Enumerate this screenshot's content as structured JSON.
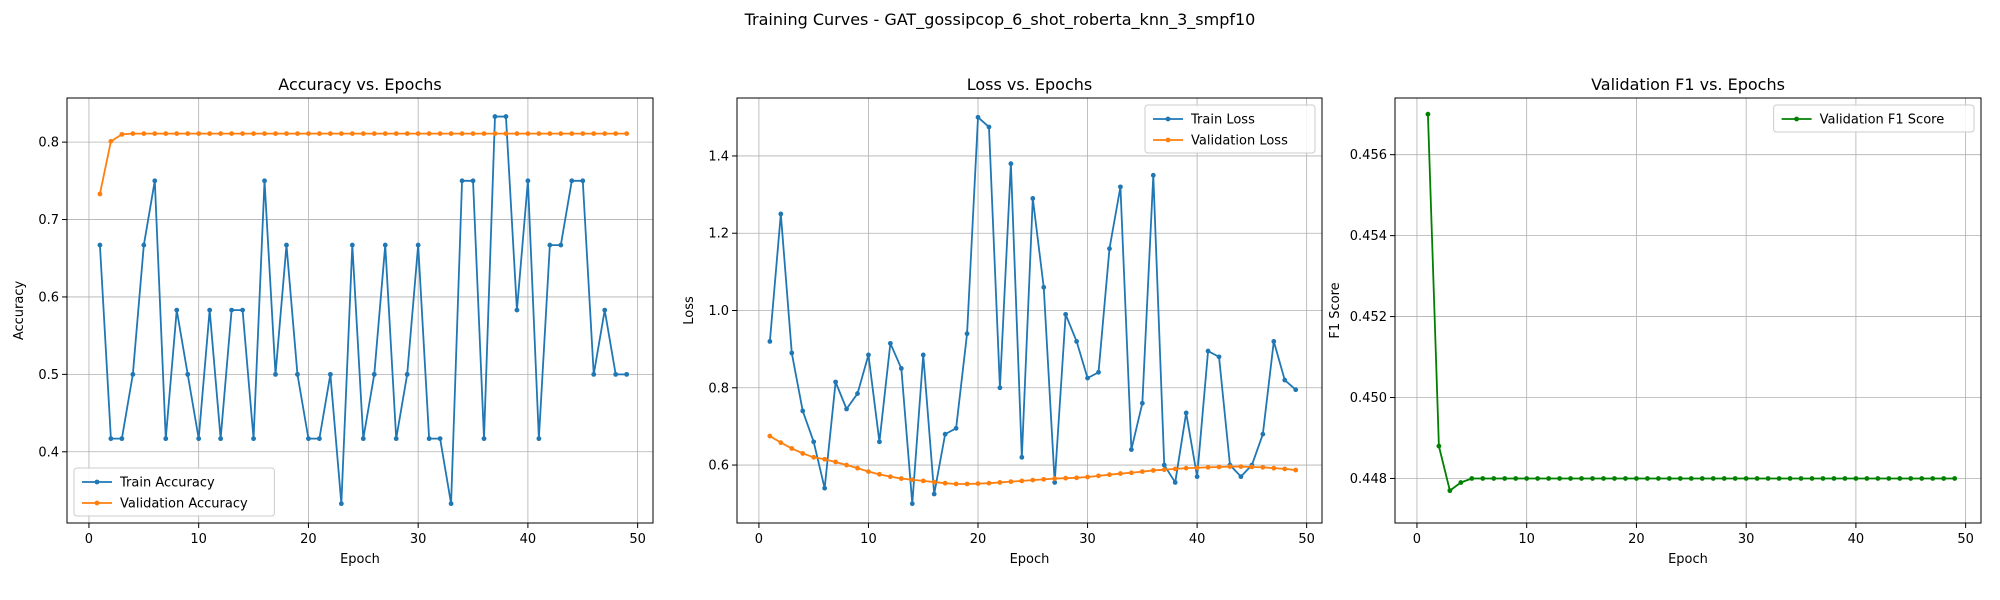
{
  "figure": {
    "suptitle": "Training Curves - GAT_gossipcop_6_shot_roberta_knn_3_smpf10"
  },
  "chart_data": [
    {
      "type": "line",
      "title": "Accuracy vs. Epochs",
      "xlabel": "Epoch",
      "ylabel": "Accuracy",
      "xlim": [
        -2,
        51.4
      ],
      "ylim": [
        0.308,
        0.857
      ],
      "xticks": [
        0,
        10,
        20,
        30,
        40,
        50
      ],
      "yticks": [
        0.4,
        0.5,
        0.6,
        0.7,
        0.8
      ],
      "ytick_labels": [
        "0.4",
        "0.5",
        "0.6",
        "0.7",
        "0.8"
      ],
      "grid": true,
      "legend_loc": "lower-left",
      "series": [
        {
          "name": "Train Accuracy",
          "color": "#1f77b4",
          "x": [
            1,
            2,
            3,
            4,
            5,
            6,
            7,
            8,
            9,
            10,
            11,
            12,
            13,
            14,
            15,
            16,
            17,
            18,
            19,
            20,
            21,
            22,
            23,
            24,
            25,
            26,
            27,
            28,
            29,
            30,
            31,
            32,
            33,
            34,
            35,
            36,
            37,
            38,
            39,
            40,
            41,
            42,
            43,
            44,
            45,
            46,
            47,
            48,
            49
          ],
          "y": [
            0.667,
            0.417,
            0.417,
            0.5,
            0.667,
            0.75,
            0.417,
            0.583,
            0.5,
            0.417,
            0.583,
            0.417,
            0.583,
            0.583,
            0.417,
            0.75,
            0.5,
            0.667,
            0.5,
            0.417,
            0.417,
            0.5,
            0.333,
            0.667,
            0.417,
            0.5,
            0.667,
            0.417,
            0.5,
            0.667,
            0.417,
            0.417,
            0.333,
            0.75,
            0.75,
            0.417,
            0.833,
            0.833,
            0.583,
            0.75,
            0.417,
            0.667,
            0.667,
            0.75,
            0.75,
            0.5,
            0.583,
            0.5,
            0.5
          ]
        },
        {
          "name": "Validation Accuracy",
          "color": "#ff7f0e",
          "x": [
            1,
            2,
            3,
            4,
            5,
            6,
            7,
            8,
            9,
            10,
            11,
            12,
            13,
            14,
            15,
            16,
            17,
            18,
            19,
            20,
            21,
            22,
            23,
            24,
            25,
            26,
            27,
            28,
            29,
            30,
            31,
            32,
            33,
            34,
            35,
            36,
            37,
            38,
            39,
            40,
            41,
            42,
            43,
            44,
            45,
            46,
            47,
            48,
            49
          ],
          "y": [
            0.733,
            0.801,
            0.81,
            0.811,
            0.811,
            0.811,
            0.811,
            0.811,
            0.811,
            0.811,
            0.811,
            0.811,
            0.811,
            0.811,
            0.811,
            0.811,
            0.811,
            0.811,
            0.811,
            0.811,
            0.811,
            0.811,
            0.811,
            0.811,
            0.811,
            0.811,
            0.811,
            0.811,
            0.811,
            0.811,
            0.811,
            0.811,
            0.811,
            0.811,
            0.811,
            0.811,
            0.811,
            0.811,
            0.811,
            0.811,
            0.811,
            0.811,
            0.811,
            0.811,
            0.811,
            0.811,
            0.811,
            0.811,
            0.811
          ]
        }
      ]
    },
    {
      "type": "line",
      "title": "Loss vs. Epochs",
      "xlabel": "Epoch",
      "ylabel": "Loss",
      "xlim": [
        -2,
        51.4
      ],
      "ylim": [
        0.45,
        1.55
      ],
      "xticks": [
        0,
        10,
        20,
        30,
        40,
        50
      ],
      "yticks": [
        0.6,
        0.8,
        1.0,
        1.2,
        1.4
      ],
      "ytick_labels": [
        "0.6",
        "0.8",
        "1.0",
        "1.2",
        "1.4"
      ],
      "grid": true,
      "legend_loc": "upper-right",
      "series": [
        {
          "name": "Train Loss",
          "color": "#1f77b4",
          "x": [
            1,
            2,
            3,
            4,
            5,
            6,
            7,
            8,
            9,
            10,
            11,
            12,
            13,
            14,
            15,
            16,
            17,
            18,
            19,
            20,
            21,
            22,
            23,
            24,
            25,
            26,
            27,
            28,
            29,
            30,
            31,
            32,
            33,
            34,
            35,
            36,
            37,
            38,
            39,
            40,
            41,
            42,
            43,
            44,
            45,
            46,
            47,
            48,
            49
          ],
          "y": [
            0.92,
            1.25,
            0.89,
            0.74,
            0.66,
            0.54,
            0.815,
            0.745,
            0.785,
            0.885,
            0.66,
            0.915,
            0.85,
            0.5,
            0.885,
            0.525,
            0.68,
            0.695,
            0.94,
            1.5,
            1.475,
            0.8,
            1.38,
            0.62,
            1.29,
            1.06,
            0.555,
            0.99,
            0.92,
            0.825,
            0.84,
            1.16,
            1.32,
            0.64,
            0.76,
            1.35,
            0.6,
            0.555,
            0.735,
            0.57,
            0.895,
            0.88,
            0.6,
            0.57,
            0.6,
            0.68,
            0.92,
            0.82,
            0.795
          ]
        },
        {
          "name": "Validation Loss",
          "color": "#ff7f0e",
          "x": [
            1,
            2,
            3,
            4,
            5,
            6,
            7,
            8,
            9,
            10,
            11,
            12,
            13,
            14,
            15,
            16,
            17,
            18,
            19,
            20,
            21,
            22,
            23,
            24,
            25,
            26,
            27,
            28,
            29,
            30,
            31,
            32,
            33,
            34,
            35,
            36,
            37,
            38,
            39,
            40,
            41,
            42,
            43,
            44,
            45,
            46,
            47,
            48,
            49
          ],
          "y": [
            0.675,
            0.658,
            0.643,
            0.63,
            0.62,
            0.615,
            0.608,
            0.6,
            0.592,
            0.583,
            0.576,
            0.57,
            0.565,
            0.562,
            0.559,
            0.556,
            0.553,
            0.551,
            0.551,
            0.552,
            0.553,
            0.555,
            0.557,
            0.559,
            0.561,
            0.563,
            0.565,
            0.566,
            0.567,
            0.569,
            0.572,
            0.575,
            0.578,
            0.58,
            0.583,
            0.586,
            0.588,
            0.59,
            0.592,
            0.593,
            0.594,
            0.595,
            0.596,
            0.596,
            0.595,
            0.594,
            0.592,
            0.59,
            0.587
          ]
        }
      ]
    },
    {
      "type": "line",
      "title": "Validation F1 vs. Epochs",
      "xlabel": "Epoch",
      "ylabel": "F1 Score",
      "xlim": [
        -2,
        51.4
      ],
      "ylim": [
        0.4469,
        0.4574
      ],
      "xticks": [
        0,
        10,
        20,
        30,
        40,
        50
      ],
      "yticks": [
        0.448,
        0.45,
        0.452,
        0.454,
        0.456
      ],
      "ytick_labels": [
        "0.448",
        "0.450",
        "0.452",
        "0.454",
        "0.456"
      ],
      "grid": true,
      "legend_loc": "upper-right",
      "series": [
        {
          "name": "Validation F1 Score",
          "color": "#008000",
          "x": [
            1,
            2,
            3,
            4,
            5,
            6,
            7,
            8,
            9,
            10,
            11,
            12,
            13,
            14,
            15,
            16,
            17,
            18,
            19,
            20,
            21,
            22,
            23,
            24,
            25,
            26,
            27,
            28,
            29,
            30,
            31,
            32,
            33,
            34,
            35,
            36,
            37,
            38,
            39,
            40,
            41,
            42,
            43,
            44,
            45,
            46,
            47,
            48,
            49
          ],
          "y": [
            0.457,
            0.4488,
            0.4477,
            0.4479,
            0.448,
            0.448,
            0.448,
            0.448,
            0.448,
            0.448,
            0.448,
            0.448,
            0.448,
            0.448,
            0.448,
            0.448,
            0.448,
            0.448,
            0.448,
            0.448,
            0.448,
            0.448,
            0.448,
            0.448,
            0.448,
            0.448,
            0.448,
            0.448,
            0.448,
            0.448,
            0.448,
            0.448,
            0.448,
            0.448,
            0.448,
            0.448,
            0.448,
            0.448,
            0.448,
            0.448,
            0.448,
            0.448,
            0.448,
            0.448,
            0.448,
            0.448,
            0.448,
            0.448,
            0.448
          ]
        }
      ]
    }
  ]
}
